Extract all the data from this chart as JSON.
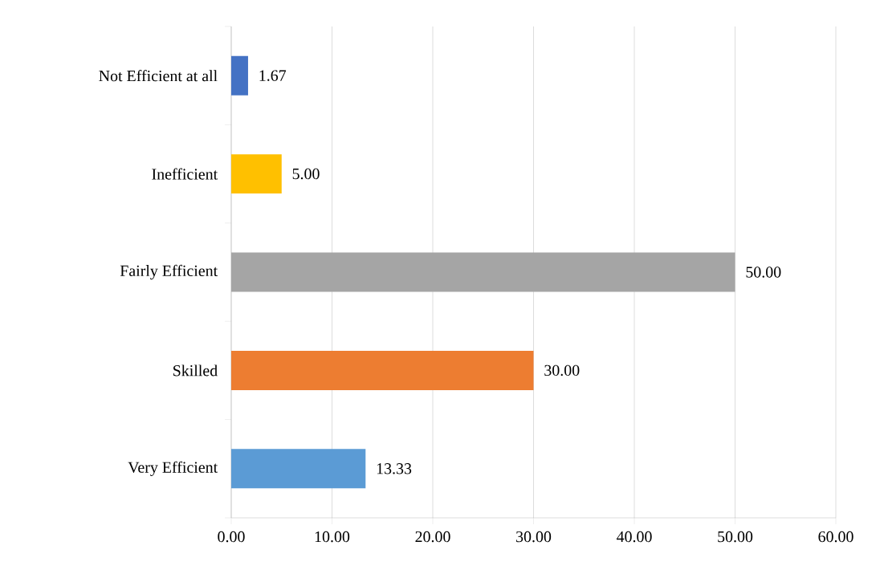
{
  "chart_data": {
    "type": "bar",
    "orientation": "horizontal",
    "categories": [
      "Not Efficient at all",
      "Inefficient",
      "Fairly Efficient",
      "Skilled",
      "Very Efficient"
    ],
    "values": [
      1.67,
      5.0,
      50.0,
      30.0,
      13.33
    ],
    "colors": [
      "#4472c4",
      "#ffc000",
      "#a5a5a5",
      "#ed7d31",
      "#5b9bd5"
    ],
    "value_labels": [
      "1.67",
      "5.00",
      "50.00",
      "30.00",
      "13.33"
    ],
    "xlim": [
      0,
      60
    ],
    "xticks": [
      {
        "value": 0,
        "label": "0.00"
      },
      {
        "value": 10,
        "label": "10.00"
      },
      {
        "value": 20,
        "label": "20.00"
      },
      {
        "value": 30,
        "label": "30.00"
      },
      {
        "value": 40,
        "label": "40.00"
      },
      {
        "value": 50,
        "label": "50.00"
      },
      {
        "value": 60,
        "label": "60.00"
      }
    ],
    "grid": "x"
  }
}
